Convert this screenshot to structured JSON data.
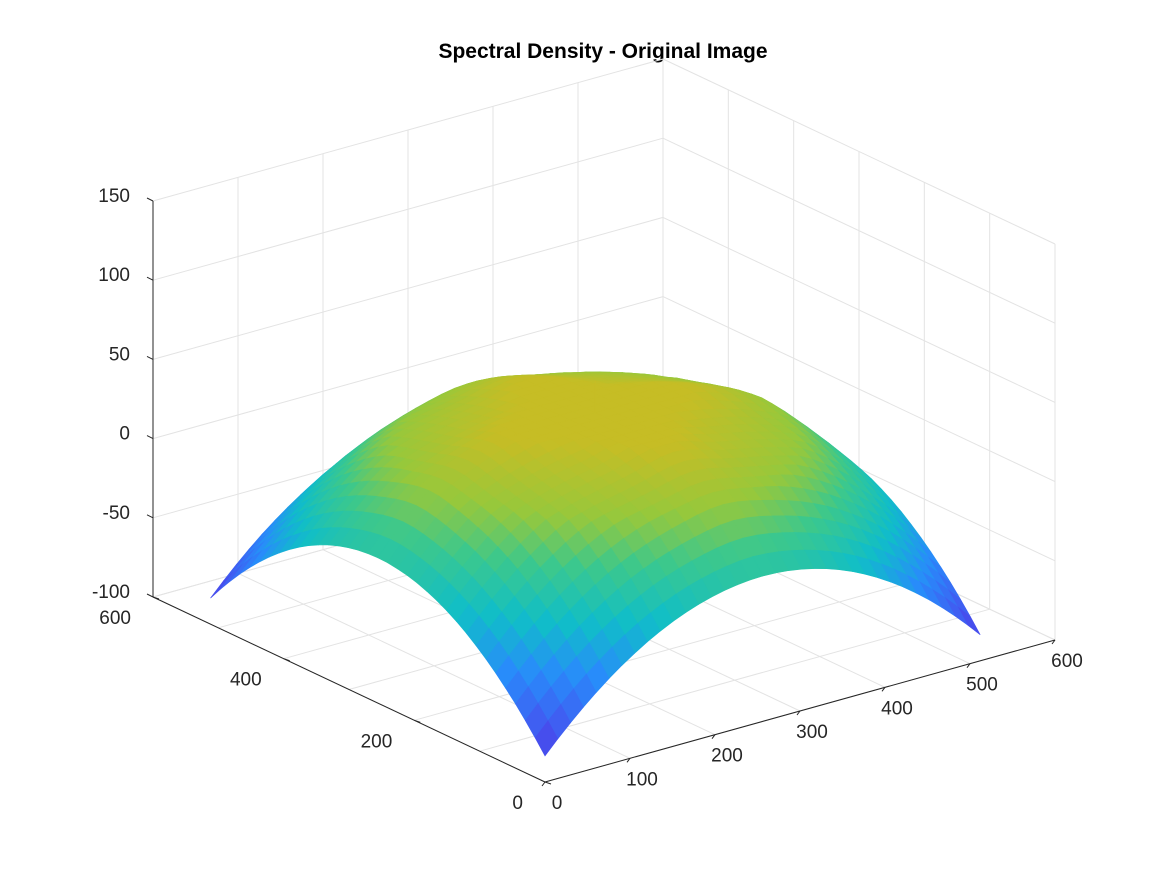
{
  "chart_data": {
    "type": "surface",
    "title": "Spectral Density - Original Image",
    "xlabel": "",
    "ylabel": "",
    "zlabel": "",
    "xlim": [
      0,
      600
    ],
    "ylim": [
      0,
      600
    ],
    "zlim": [
      -100,
      150
    ],
    "x_ticks": [
      0,
      100,
      200,
      300,
      400,
      500,
      600
    ],
    "y_ticks": [
      0,
      200,
      400,
      600
    ],
    "z_ticks": [
      -100,
      -50,
      0,
      50,
      100,
      150
    ],
    "grid": true,
    "colormap": "parula",
    "surface_extent": {
      "x": [
        0,
        512
      ],
      "y": [
        0,
        512
      ]
    },
    "peak_value": 45,
    "center_spike_value": 65,
    "edge_value": -100
  },
  "colors": {
    "title": "#000000",
    "axis": "#262626",
    "grid": "#e3e3e3",
    "colormap_low": "#3e26a8",
    "colormap_mid": "#10c0c0",
    "colormap_high": "#c6bd25"
  }
}
